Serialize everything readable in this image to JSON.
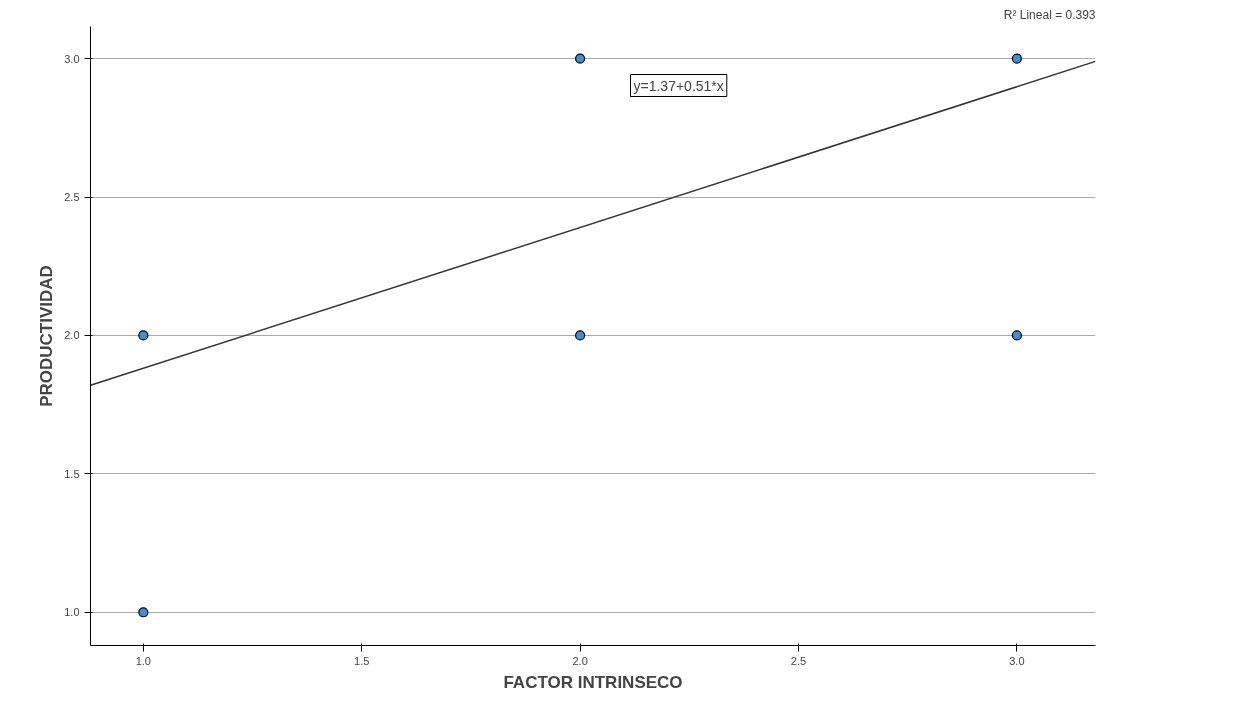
{
  "chart_data": {
    "type": "scatter",
    "xlabel": "FACTOR INTRINSECO",
    "ylabel": "PRODUCTIVIDAD",
    "xlim": [
      0.879,
      3.18
    ],
    "ylim": [
      0.88,
      3.116
    ],
    "xticks": [
      {
        "value": 1,
        "label": "1.0"
      },
      {
        "value": 1.5,
        "label": "1.5"
      },
      {
        "value": 2,
        "label": "2.0"
      },
      {
        "value": 2.5,
        "label": "2.5"
      },
      {
        "value": 3,
        "label": "3.0"
      }
    ],
    "yticks": [
      {
        "value": 1,
        "label": "1.0"
      },
      {
        "value": 1.5,
        "label": "1.5"
      },
      {
        "value": 2,
        "label": "2.0"
      },
      {
        "value": 2.5,
        "label": "2.5"
      },
      {
        "value": 3,
        "label": "3.0"
      }
    ],
    "grid": "y",
    "marker": "circle",
    "series": [
      {
        "color": "#3d8fd6",
        "x": [
          1,
          1,
          2,
          2,
          3,
          3
        ],
        "values": [
          2,
          1,
          3,
          2,
          3,
          2
        ]
      },
      {
        "type": "line",
        "marker": "none",
        "color": "#333333",
        "x": [
          0.879,
          3.18
        ],
        "values": [
          1.82,
          2.99
        ]
      }
    ],
    "annotations": [
      "y=1.37+0.51*x",
      "R² Lineal = 0.393"
    ]
  }
}
